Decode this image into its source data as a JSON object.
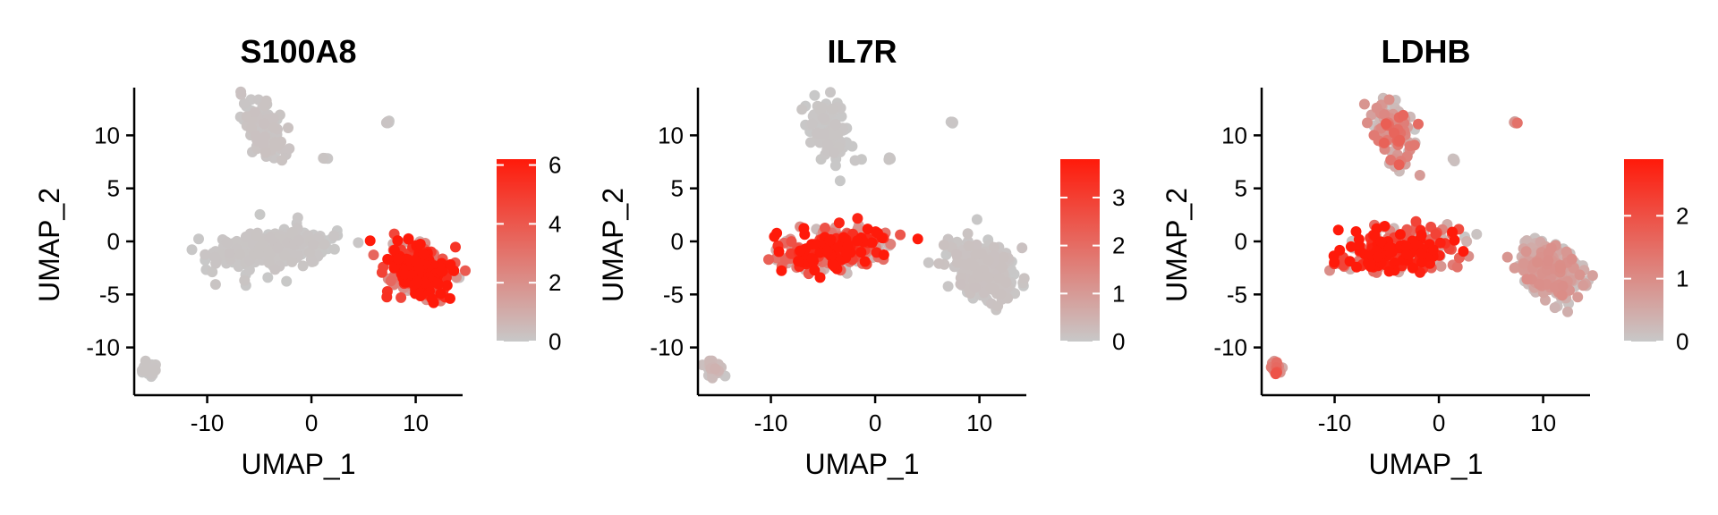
{
  "chart_data": [
    {
      "type": "scatter",
      "title": "S100A8",
      "xlabel": "UMAP_1",
      "ylabel": "UMAP_2",
      "xlim": [
        -17,
        14.5
      ],
      "ylim": [
        -14.5,
        14.5
      ],
      "xticks": [
        -10,
        0,
        10
      ],
      "yticks": [
        -10,
        -5,
        0,
        5,
        10
      ],
      "xtick_labels": [
        "-10",
        "0",
        "10"
      ],
      "ytick_labels": [
        "-10",
        "-5",
        "0",
        "5",
        "10"
      ],
      "colorbar": {
        "min": 0,
        "max": 6.2,
        "ticks": [
          0,
          2,
          4,
          6
        ],
        "tick_labels": [
          "0",
          "2",
          "4",
          "6"
        ],
        "low_color": "#c8c8c8",
        "high_color": "#ff1a0a"
      },
      "clusters": [
        {
          "name": "top-cluster",
          "x": -4.5,
          "y": 10.5,
          "expression": 0.15
        },
        {
          "name": "center-cluster",
          "x": -4,
          "y": -0.8,
          "expression": 0.1
        },
        {
          "name": "right-cluster",
          "x": 10.5,
          "y": -2.8,
          "expression": 5.2
        },
        {
          "name": "bottom-left-cluster",
          "x": -15.5,
          "y": -12,
          "expression": 0.1
        },
        {
          "name": "outlier-a",
          "x": 7.3,
          "y": 11.2,
          "expression": 0.1
        },
        {
          "name": "outlier-b",
          "x": 1.4,
          "y": 7.8,
          "expression": 0.1
        }
      ]
    },
    {
      "type": "scatter",
      "title": "IL7R",
      "xlabel": "UMAP_1",
      "ylabel": "UMAP_2",
      "xlim": [
        -17,
        14.5
      ],
      "ylim": [
        -14.5,
        14.5
      ],
      "xticks": [
        -10,
        0,
        10
      ],
      "yticks": [
        -10,
        -5,
        0,
        5,
        10
      ],
      "xtick_labels": [
        "-10",
        "0",
        "10"
      ],
      "ytick_labels": [
        "-10",
        "-5",
        "0",
        "5",
        "10"
      ],
      "colorbar": {
        "min": 0,
        "max": 3.8,
        "ticks": [
          0,
          1,
          2,
          3
        ],
        "tick_labels": [
          "0",
          "1",
          "2",
          "3"
        ],
        "low_color": "#c8c8c8",
        "high_color": "#ff1a0a"
      },
      "clusters": [
        {
          "name": "top-cluster",
          "x": -4.5,
          "y": 10.5,
          "expression": 0.05
        },
        {
          "name": "center-cluster",
          "x": -4,
          "y": -0.8,
          "expression": 2.8
        },
        {
          "name": "right-cluster",
          "x": 10.5,
          "y": -2.8,
          "expression": 0.1
        },
        {
          "name": "bottom-left-cluster",
          "x": -15.5,
          "y": -12,
          "expression": 0.3
        },
        {
          "name": "outlier-a",
          "x": 7.3,
          "y": 11.2,
          "expression": 0.05
        },
        {
          "name": "outlier-b",
          "x": 1.4,
          "y": 7.8,
          "expression": 0.05
        }
      ]
    },
    {
      "type": "scatter",
      "title": "LDHB",
      "xlabel": "UMAP_1",
      "ylabel": "UMAP_2",
      "xlim": [
        -17,
        14.5
      ],
      "ylim": [
        -14.5,
        14.5
      ],
      "xticks": [
        -10,
        0,
        10
      ],
      "yticks": [
        -10,
        -5,
        0,
        5,
        10
      ],
      "xtick_labels": [
        "-10",
        "0",
        "10"
      ],
      "ytick_labels": [
        "-10",
        "-5",
        "0",
        "5",
        "10"
      ],
      "colorbar": {
        "min": 0,
        "max": 2.9,
        "ticks": [
          0,
          1,
          2
        ],
        "tick_labels": [
          "0",
          "1",
          "2"
        ],
        "low_color": "#c8c8c8",
        "high_color": "#ff1a0a"
      },
      "clusters": [
        {
          "name": "top-cluster",
          "x": -4.5,
          "y": 10.5,
          "expression": 1.1
        },
        {
          "name": "center-cluster",
          "x": -4,
          "y": -0.8,
          "expression": 2.3
        },
        {
          "name": "right-cluster",
          "x": 10.5,
          "y": -2.8,
          "expression": 0.6
        },
        {
          "name": "bottom-left-cluster",
          "x": -15.5,
          "y": -12,
          "expression": 1.2
        },
        {
          "name": "outlier-a",
          "x": 7.3,
          "y": 11.2,
          "expression": 1.0
        },
        {
          "name": "outlier-b",
          "x": 1.4,
          "y": 7.8,
          "expression": 0.1
        }
      ]
    }
  ]
}
